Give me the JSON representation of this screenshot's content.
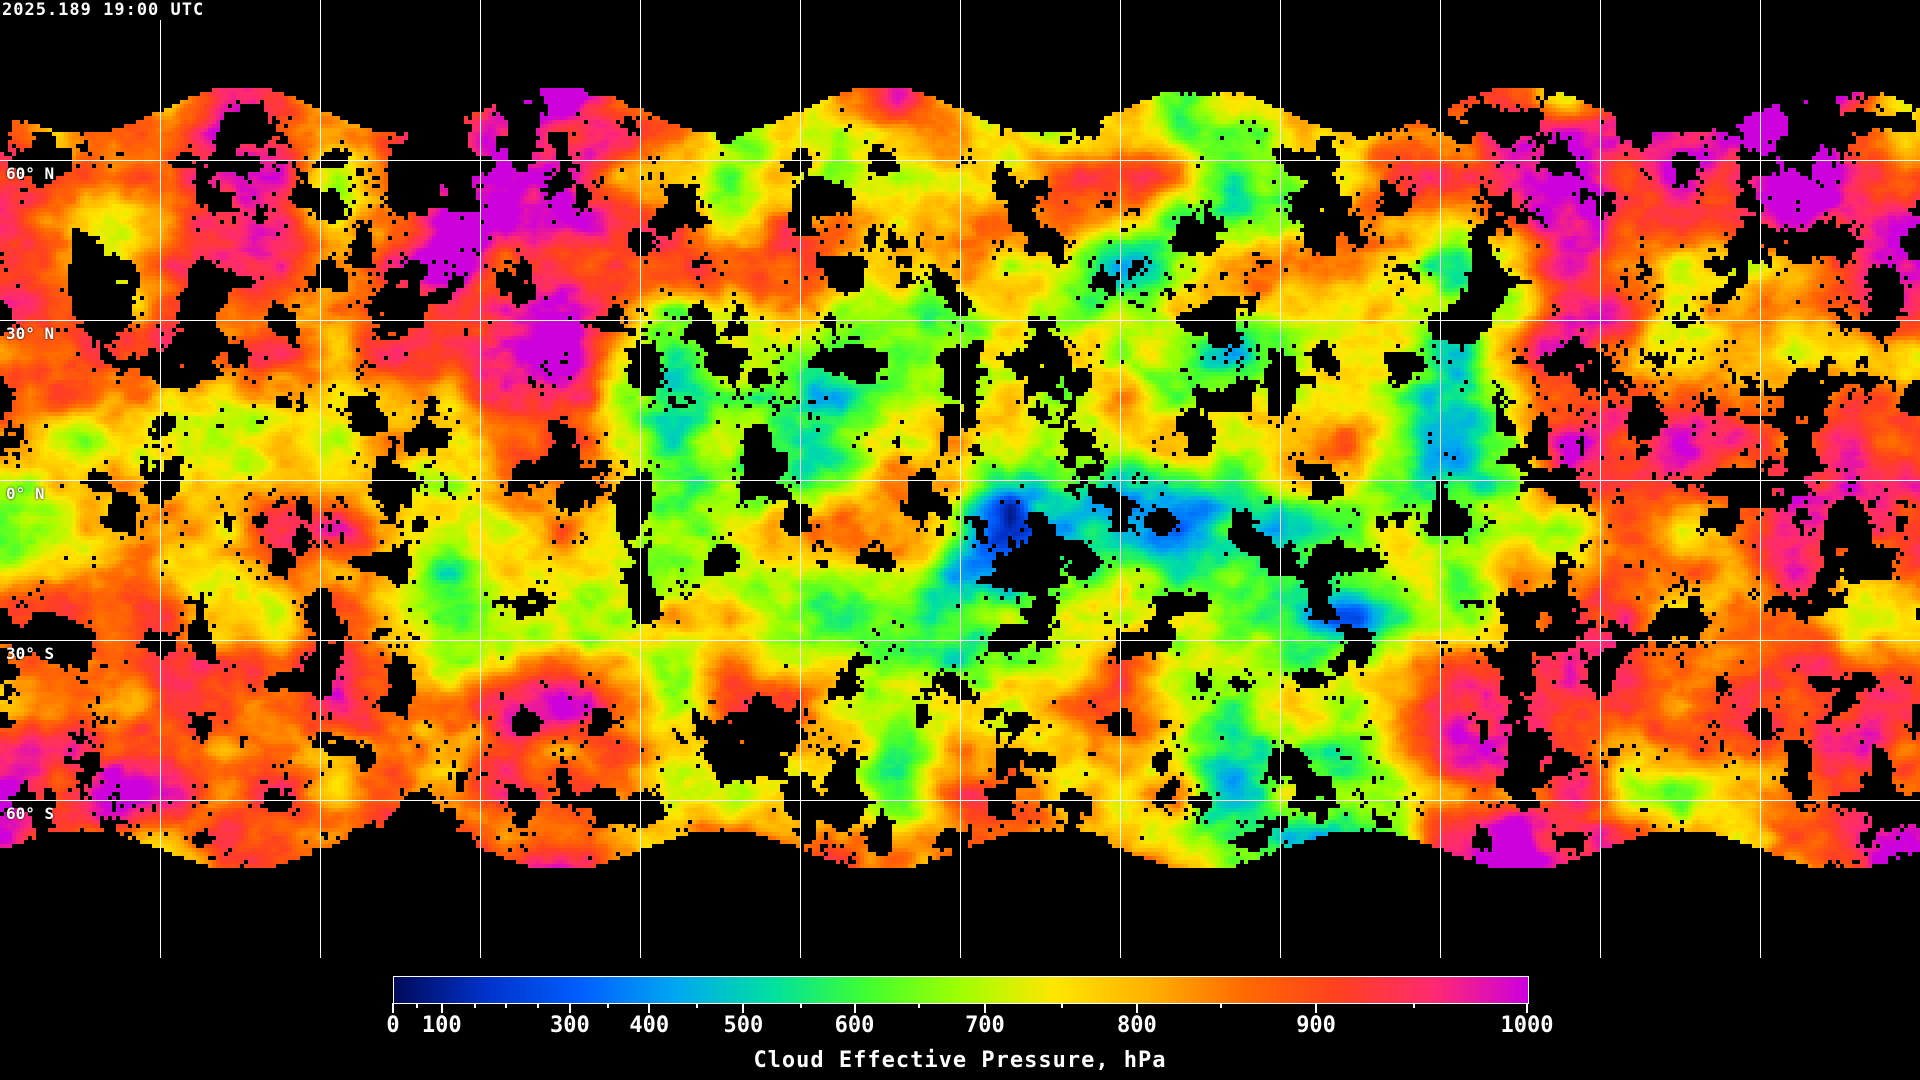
{
  "header": {
    "timestamp": "2025.189 19:00 UTC"
  },
  "map": {
    "projection": "equirectangular",
    "graticule_spacing_deg": 30,
    "lat_labels": [
      "60° N",
      "30° N",
      "0° N",
      "30° S",
      "60° S"
    ],
    "no_data_color": "#000000",
    "graticule_color": "#ffffff",
    "coastline_color": "#ffffff"
  },
  "colorbar": {
    "title": "Cloud Effective Pressure, hPa",
    "min": 0,
    "max": 1000,
    "tick_labels": [
      "0",
      "100",
      "300",
      "400",
      "500",
      "600",
      "700",
      "800",
      "900",
      "1000"
    ],
    "colors": [
      "#000a5a",
      "#0033cc",
      "#0060ff",
      "#00a8f0",
      "#00e0a0",
      "#40ff30",
      "#a0ff00",
      "#ffe600",
      "#ffb000",
      "#ff6a00",
      "#ff4020",
      "#ff2a70",
      "#cc00dd"
    ]
  }
}
